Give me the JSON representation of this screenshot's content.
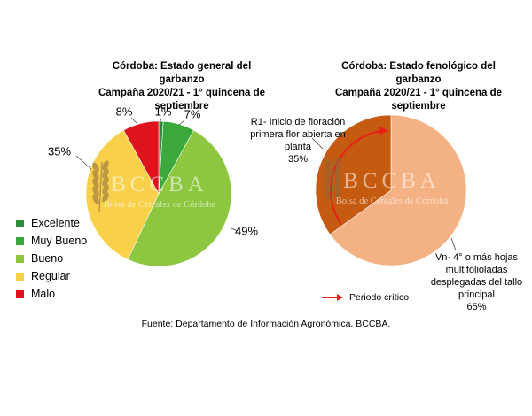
{
  "chart_data": [
    {
      "type": "pie",
      "title": "Córdoba: Estado general del garbanzo",
      "subtitle": "Campaña 2020/21 - 1° quincena de septiembre",
      "slices": [
        {
          "name": "Excelente",
          "value": 1,
          "label": "1%",
          "color": "#2e8b3a"
        },
        {
          "name": "Muy Bueno",
          "value": 7,
          "label": "7%",
          "color": "#3aa83a"
        },
        {
          "name": "Bueno",
          "value": 49,
          "label": "49%",
          "color": "#8dc63f"
        },
        {
          "name": "Regular",
          "value": 35,
          "label": "35%",
          "color": "#f8d04a"
        },
        {
          "name": "Malo",
          "value": 8,
          "label": "8%",
          "color": "#e0121b"
        }
      ],
      "legend": "left"
    },
    {
      "type": "pie",
      "title": "Córdoba: Estado fenológico del garbanzo",
      "subtitle": "Campaña 2020/21 - 1° quincena de septiembre",
      "slices": [
        {
          "name": "Vn- 4° o más hojas multifolioladas desplegadas del tallo principal",
          "value": 65,
          "label": "65%",
          "color": "#f4b183"
        },
        {
          "name": "R1- Inicio de floración primera flor abierta en planta",
          "value": 35,
          "label": "35%",
          "color": "#c55a11"
        }
      ],
      "annotation": "Periodo crítico"
    }
  ],
  "callouts": {
    "r1": [
      "R1- Inicio de floración",
      "primera flor abierta en",
      "planta",
      "35%"
    ],
    "vn": [
      "Vn- 4° o más hojas",
      "multifolioladas",
      "desplegadas del tallo",
      "principal",
      "65%"
    ]
  },
  "watermark": {
    "brand": "BCCBA",
    "subtitle": "Bolsa de Cereales de Córdoba"
  },
  "source": "Fuente: Departamento de Información Agronómica. BCCBA.",
  "colors": {
    "arrow": "#e8211b",
    "wheat": "#8a6a3a"
  }
}
